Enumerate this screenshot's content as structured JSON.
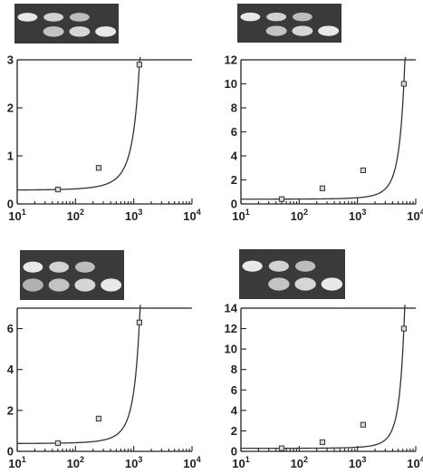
{
  "figure": {
    "gel_band_color": "#f2f2f2",
    "gel_background": "#3a3a3a",
    "axis_color": "#222222"
  },
  "chart_data": [
    {
      "type": "scatter",
      "panel": "top-left",
      "xscale": "log",
      "xlim": [
        10,
        10000
      ],
      "ylim": [
        0,
        3
      ],
      "x_ticks": [
        {
          "base": "10",
          "exp": "1"
        },
        {
          "base": "10",
          "exp": "2"
        },
        {
          "base": "10",
          "exp": "3"
        },
        {
          "base": "10",
          "exp": "4"
        }
      ],
      "y_ticks": [
        "0",
        "1",
        "2",
        "3"
      ],
      "points": [
        {
          "x": 50,
          "y": 0.3
        },
        {
          "x": 250,
          "y": 0.75
        },
        {
          "x": 1250,
          "y": 2.9
        }
      ],
      "fit_curve": "exponential",
      "gel": {
        "lanes": 4,
        "upper_band_lanes": [
          1,
          1,
          1,
          0
        ],
        "lower_band_lanes": [
          0,
          1,
          1,
          1
        ]
      }
    },
    {
      "type": "scatter",
      "panel": "top-right",
      "xscale": "log",
      "xlim": [
        10,
        10000
      ],
      "ylim": [
        0,
        12
      ],
      "x_ticks": [
        {
          "base": "10",
          "exp": "1"
        },
        {
          "base": "10",
          "exp": "2"
        },
        {
          "base": "10",
          "exp": "3"
        },
        {
          "base": "10",
          "exp": "4"
        }
      ],
      "y_ticks": [
        "0",
        "2",
        "4",
        "6",
        "8",
        "10",
        "12"
      ],
      "points": [
        {
          "x": 50,
          "y": 0.4
        },
        {
          "x": 250,
          "y": 1.3
        },
        {
          "x": 1250,
          "y": 2.8
        },
        {
          "x": 6250,
          "y": 10.0
        }
      ],
      "fit_curve": "exponential",
      "gel": {
        "lanes": 4,
        "upper_band_lanes": [
          1,
          1,
          1,
          0
        ],
        "lower_band_lanes": [
          0,
          1,
          1,
          1
        ]
      }
    },
    {
      "type": "scatter",
      "panel": "bottom-left",
      "xscale": "log",
      "xlim": [
        10,
        10000
      ],
      "ylim": [
        0,
        7
      ],
      "x_ticks": [
        {
          "base": "10",
          "exp": "1"
        },
        {
          "base": "10",
          "exp": "2"
        },
        {
          "base": "10",
          "exp": "3"
        },
        {
          "base": "10",
          "exp": "4"
        }
      ],
      "y_ticks": [
        "0",
        "2",
        "4",
        "6"
      ],
      "points": [
        {
          "x": 50,
          "y": 0.4
        },
        {
          "x": 250,
          "y": 1.6
        },
        {
          "x": 1250,
          "y": 6.3
        }
      ],
      "fit_curve": "exponential",
      "gel": {
        "lanes": 4,
        "upper_band_lanes": [
          1,
          1,
          1,
          0
        ],
        "lower_band_lanes": [
          1,
          1,
          1,
          1
        ]
      }
    },
    {
      "type": "scatter",
      "panel": "bottom-right",
      "xscale": "log",
      "xlim": [
        10,
        10000
      ],
      "ylim": [
        0,
        14
      ],
      "x_ticks": [
        {
          "base": "10",
          "exp": "1"
        },
        {
          "base": "10",
          "exp": "2"
        },
        {
          "base": "10",
          "exp": "3"
        },
        {
          "base": "10",
          "exp": "4"
        }
      ],
      "y_ticks": [
        "0",
        "2",
        "4",
        "6",
        "8",
        "10",
        "12",
        "14"
      ],
      "points": [
        {
          "x": 50,
          "y": 0.3
        },
        {
          "x": 250,
          "y": 0.9
        },
        {
          "x": 1250,
          "y": 2.6
        },
        {
          "x": 6250,
          "y": 12.0
        }
      ],
      "fit_curve": "exponential",
      "gel": {
        "lanes": 4,
        "upper_band_lanes": [
          1,
          1,
          1,
          0
        ],
        "lower_band_lanes": [
          0,
          1,
          1,
          1
        ]
      }
    }
  ]
}
